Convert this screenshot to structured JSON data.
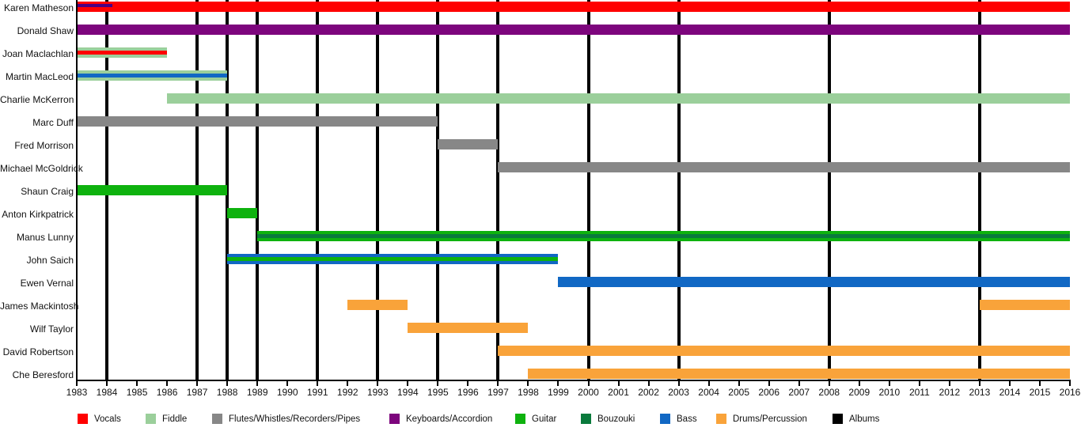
{
  "chart_data": {
    "type": "timeline",
    "x_axis": {
      "start": 1983,
      "end": 2016,
      "tick_years": [
        1983,
        1984,
        1985,
        1986,
        1987,
        1988,
        1989,
        1990,
        1991,
        1992,
        1993,
        1994,
        1995,
        1996,
        1997,
        1998,
        1999,
        2000,
        2001,
        2002,
        2003,
        2004,
        2005,
        2006,
        2007,
        2008,
        2009,
        2010,
        2011,
        2012,
        2013,
        2014,
        2015,
        2016
      ]
    },
    "album_lines": [
      1984,
      1987,
      1988,
      1989,
      1991,
      1993,
      1995,
      1997,
      2000,
      2003,
      2008,
      2013
    ],
    "members": [
      {
        "name": "Karen Matheson",
        "segments": [
          {
            "start": 1983,
            "end": 2016,
            "role": "vocals",
            "overlay": {
              "start": 1983,
              "end": 1984.15,
              "role": "overlay_purple"
            }
          }
        ]
      },
      {
        "name": "Donald Shaw",
        "segments": [
          {
            "start": 1983,
            "end": 2016,
            "role": "keyboards"
          }
        ]
      },
      {
        "name": "Joan Maclachlan",
        "segments": [
          {
            "start": 1983,
            "end": 1986,
            "role": "fiddle",
            "stripe": "vocals"
          }
        ]
      },
      {
        "name": "Martin MacLeod",
        "segments": [
          {
            "start": 1983,
            "end": 1988,
            "role": "fiddle",
            "stripe": "bass"
          }
        ]
      },
      {
        "name": "Charlie McKerron",
        "segments": [
          {
            "start": 1986,
            "end": 2016,
            "role": "fiddle"
          }
        ]
      },
      {
        "name": "Marc Duff",
        "segments": [
          {
            "start": 1983,
            "end": 1995,
            "role": "flutes"
          }
        ]
      },
      {
        "name": "Fred Morrison",
        "segments": [
          {
            "start": 1995,
            "end": 1997,
            "role": "flutes"
          }
        ]
      },
      {
        "name": "Michael McGoldrick",
        "segments": [
          {
            "start": 1997,
            "end": 2016,
            "role": "flutes"
          }
        ]
      },
      {
        "name": "Shaun Craig",
        "segments": [
          {
            "start": 1983,
            "end": 1988,
            "role": "guitar"
          }
        ]
      },
      {
        "name": "Anton Kirkpatrick",
        "segments": [
          {
            "start": 1988,
            "end": 1989,
            "role": "guitar"
          }
        ]
      },
      {
        "name": "Manus Lunny",
        "segments": [
          {
            "start": 1989,
            "end": 2016,
            "role": "guitar",
            "stripe": "bouzouki"
          }
        ]
      },
      {
        "name": "John Saich",
        "segments": [
          {
            "start": 1988,
            "end": 1999,
            "role": "bass",
            "stripe": "guitar"
          }
        ]
      },
      {
        "name": "Ewen Vernal",
        "segments": [
          {
            "start": 1999,
            "end": 2016,
            "role": "bass"
          }
        ]
      },
      {
        "name": "James Mackintosh",
        "segments": [
          {
            "start": 1992,
            "end": 1994,
            "role": "drums"
          },
          {
            "start": 2013,
            "end": 2016,
            "role": "drums"
          }
        ]
      },
      {
        "name": "Wilf Taylor",
        "segments": [
          {
            "start": 1994,
            "end": 1998,
            "role": "drums"
          }
        ]
      },
      {
        "name": "David Robertson",
        "segments": [
          {
            "start": 1997,
            "end": 2016,
            "role": "drums"
          }
        ]
      },
      {
        "name": "Che Beresford",
        "segments": [
          {
            "start": 1998,
            "end": 2016,
            "role": "drums"
          }
        ]
      }
    ],
    "legend": [
      {
        "label": "Vocals",
        "role": "vocals"
      },
      {
        "label": "Fiddle",
        "role": "fiddle"
      },
      {
        "label": "Flutes/Whistles/Recorders/Pipes",
        "role": "flutes"
      },
      {
        "label": "Keyboards/Accordion",
        "role": "keyboards"
      },
      {
        "label": "Guitar",
        "role": "guitar"
      },
      {
        "label": "Bouzouki",
        "role": "bouzouki"
      },
      {
        "label": "Bass",
        "role": "bass"
      },
      {
        "label": "Drums/Percussion",
        "role": "drums"
      },
      {
        "label": "Albums",
        "role": "albums"
      }
    ],
    "colors": {
      "vocals": "#FF0000",
      "fiddle": "#9BCF9B",
      "flutes": "#878787",
      "keyboards": "#7D057D",
      "guitar": "#0EB20E",
      "bouzouki": "#0A7A3C",
      "bass": "#1168C4",
      "drums": "#F9A33A",
      "albums": "#000000",
      "overlay_purple": "#4B0082"
    }
  }
}
